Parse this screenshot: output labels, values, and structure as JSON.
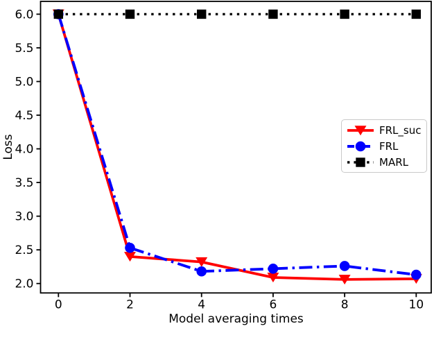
{
  "figure": {
    "background": "#ffffff"
  },
  "chart_data": {
    "type": "line",
    "title": "",
    "xlabel": "Model averaging times",
    "ylabel": "Loss",
    "x": [
      0,
      2,
      4,
      6,
      8,
      10
    ],
    "series": [
      {
        "name": "FRL_suc",
        "color": "#ff0000",
        "linestyle": "solid",
        "marker": "triangle-down",
        "values": [
          6.0,
          2.4,
          2.32,
          2.09,
          2.06,
          2.07
        ]
      },
      {
        "name": "FRL",
        "color": "#0000ff",
        "linestyle": "dashdot",
        "marker": "circle",
        "values": [
          6.0,
          2.53,
          2.18,
          2.22,
          2.26,
          2.13
        ]
      },
      {
        "name": "MARL",
        "color": "#000000",
        "linestyle": "dotted",
        "marker": "square",
        "values": [
          6.0,
          6.0,
          6.0,
          6.0,
          6.0,
          6.0
        ]
      }
    ],
    "xticks": {
      "values": [
        0,
        2,
        4,
        6,
        8,
        10
      ],
      "labels": [
        "0",
        "2",
        "4",
        "6",
        "8",
        "10"
      ]
    },
    "yticks": {
      "values": [
        2.0,
        2.5,
        3.0,
        3.5,
        4.0,
        4.5,
        5.0,
        5.5,
        6.0
      ],
      "labels": [
        "2.0",
        "2.5",
        "3.0",
        "3.5",
        "4.0",
        "4.5",
        "5.0",
        "5.5",
        "6.0"
      ]
    },
    "xlim": [
      -0.5,
      10.42
    ],
    "ylim": [
      1.86,
      6.19
    ],
    "grid": false,
    "legend": {
      "position": "center-right",
      "entries": [
        "FRL_suc",
        "FRL",
        "MARL"
      ]
    }
  }
}
